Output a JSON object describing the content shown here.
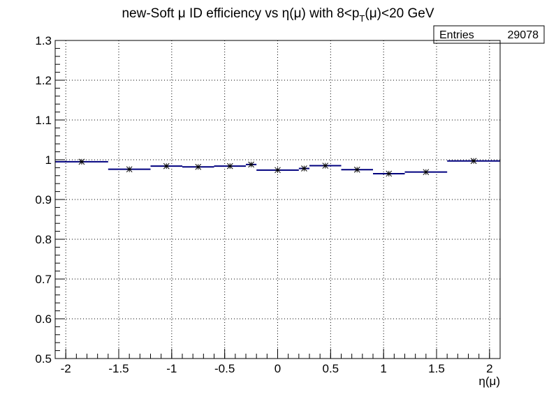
{
  "title_parts": {
    "a": "new-Soft ",
    "mu1": "μ",
    "b": " ID efficiency vs η(μ) with 8<p",
    "sub": "T",
    "c": "(μ)<20 GeV"
  },
  "xlabel": "η(μ)",
  "stats": {
    "label": "Entries",
    "value": "29078"
  },
  "colors": {
    "line": "#00007f",
    "marker": "#000000",
    "grid": "#000000"
  },
  "chart_data": {
    "type": "line",
    "xlim": [
      -2.1,
      2.1
    ],
    "ylim": [
      0.5,
      1.3
    ],
    "grid": true,
    "x_ticks": [
      {
        "v": -2,
        "label": "-2"
      },
      {
        "v": -1.5,
        "label": "-1.5"
      },
      {
        "v": -1,
        "label": "-1"
      },
      {
        "v": -0.5,
        "label": "-0.5"
      },
      {
        "v": 0,
        "label": "0"
      },
      {
        "v": 0.5,
        "label": "0.5"
      },
      {
        "v": 1,
        "label": "1"
      },
      {
        "v": 1.5,
        "label": "1.5"
      },
      {
        "v": 2,
        "label": "2"
      }
    ],
    "y_ticks": [
      {
        "v": 0.5,
        "label": "0.5"
      },
      {
        "v": 0.6,
        "label": "0.6"
      },
      {
        "v": 0.7,
        "label": "0.7"
      },
      {
        "v": 0.8,
        "label": "0.8"
      },
      {
        "v": 0.9,
        "label": "0.9"
      },
      {
        "v": 1.0,
        "label": "1"
      },
      {
        "v": 1.1,
        "label": "1.1"
      },
      {
        "v": 1.2,
        "label": "1.2"
      },
      {
        "v": 1.3,
        "label": "1.3"
      }
    ],
    "bins": [
      {
        "xlo": -2.1,
        "xhi": -1.6,
        "x": -1.85,
        "y": 0.995
      },
      {
        "xlo": -1.6,
        "xhi": -1.2,
        "x": -1.4,
        "y": 0.976
      },
      {
        "xlo": -1.2,
        "xhi": -0.9,
        "x": -1.05,
        "y": 0.984
      },
      {
        "xlo": -0.9,
        "xhi": -0.6,
        "x": -0.75,
        "y": 0.982
      },
      {
        "xlo": -0.6,
        "xhi": -0.3,
        "x": -0.45,
        "y": 0.984
      },
      {
        "xlo": -0.3,
        "xhi": -0.2,
        "x": -0.25,
        "y": 0.988
      },
      {
        "xlo": -0.2,
        "xhi": 0.2,
        "x": 0.0,
        "y": 0.974
      },
      {
        "xlo": 0.2,
        "xhi": 0.3,
        "x": 0.25,
        "y": 0.978
      },
      {
        "xlo": 0.3,
        "xhi": 0.6,
        "x": 0.45,
        "y": 0.985
      },
      {
        "xlo": 0.6,
        "xhi": 0.9,
        "x": 0.75,
        "y": 0.975
      },
      {
        "xlo": 0.9,
        "xhi": 1.2,
        "x": 1.05,
        "y": 0.965
      },
      {
        "xlo": 1.2,
        "xhi": 1.6,
        "x": 1.4,
        "y": 0.969
      },
      {
        "xlo": 1.6,
        "xhi": 2.1,
        "x": 1.85,
        "y": 0.997
      }
    ]
  }
}
